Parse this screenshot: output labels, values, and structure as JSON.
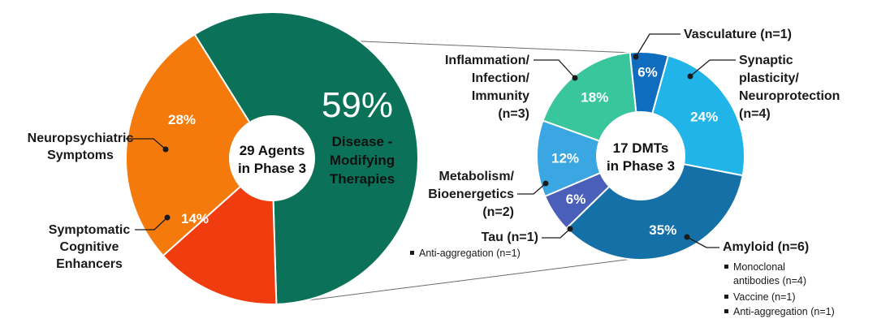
{
  "colors": {
    "disease_modifying": "#0b7158",
    "neuropsychiatric": "#f47b0b",
    "symptomatic_cognitive": "#f03c0e",
    "vasculature": "#0f6cbf",
    "synaptic": "#20b4e8",
    "amyloid": "#1570a8",
    "tau": "#4a5fb9",
    "metabolism": "#3aa7e3",
    "inflammation": "#3ac69c",
    "leader": "#8a8a8a",
    "label_text": "#1a1a1a"
  },
  "chart_data": [
    {
      "type": "pie",
      "title": "29 Agents in Phase 3",
      "center_lines": [
        "29 Agents",
        "in Phase 3"
      ],
      "slices": [
        {
          "key": "dmt",
          "label_lines": [
            "Disease -",
            "Modifying",
            "Therapies"
          ],
          "pct": 59,
          "pct_text": "59%",
          "color_key": "disease_modifying"
        },
        {
          "key": "sce",
          "label_lines": [
            "Symptomatic",
            "Cognitive",
            "Enhancers"
          ],
          "pct": 14,
          "pct_text": "14%",
          "color_key": "symptomatic_cognitive"
        },
        {
          "key": "nps",
          "label_lines": [
            "Neuropsychiatric",
            "Symptoms"
          ],
          "pct": 28,
          "pct_text": "28%",
          "color_key": "neuropsychiatric"
        }
      ]
    },
    {
      "type": "pie",
      "title": "17 DMTs in Phase 3",
      "center_lines": [
        "17 DMTs",
        "in Phase 3"
      ],
      "slices": [
        {
          "key": "vasc",
          "label_lines": [
            "Vasculature (n=1)"
          ],
          "pct": 6,
          "pct_text": "6%",
          "n": 1,
          "color_key": "vasculature",
          "subitems": []
        },
        {
          "key": "syn",
          "label_lines": [
            "Synaptic",
            "plasticity/",
            "Neuroprotection",
            "(n=4)"
          ],
          "pct": 24,
          "pct_text": "24%",
          "n": 4,
          "color_key": "synaptic",
          "subitems": []
        },
        {
          "key": "amy",
          "label_lines": [
            "Amyloid (n=6)"
          ],
          "pct": 35,
          "pct_text": "35%",
          "n": 6,
          "color_key": "amyloid",
          "subitems": [
            "Monoclonal",
            "antibodies (n=4)",
            "Vaccine (n=1)",
            "Anti-aggregation (n=1)"
          ]
        },
        {
          "key": "tau",
          "label_lines": [
            "Tau (n=1)"
          ],
          "pct": 6,
          "pct_text": "6%",
          "n": 1,
          "color_key": "tau",
          "subitems": [
            "Anti-aggregation (n=1)"
          ]
        },
        {
          "key": "met",
          "label_lines": [
            "Metabolism/",
            "Bioenergetics",
            "(n=2)"
          ],
          "pct": 12,
          "pct_text": "12%",
          "n": 2,
          "color_key": "metabolism",
          "subitems": []
        },
        {
          "key": "inf",
          "label_lines": [
            "Inflammation/",
            "Infection/",
            "Immunity",
            "(n=3)"
          ],
          "pct": 18,
          "pct_text": "18%",
          "n": 3,
          "color_key": "inflammation",
          "subitems": []
        }
      ]
    }
  ]
}
